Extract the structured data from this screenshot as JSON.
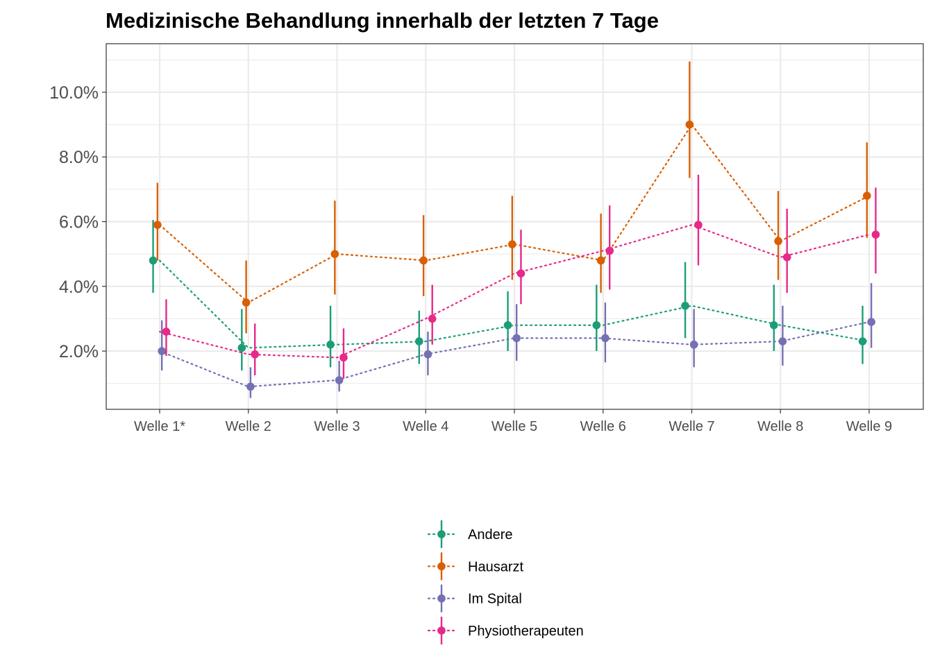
{
  "chart_data": {
    "type": "line",
    "title": "Medizinische Behandlung innerhalb der letzten 7 Tage",
    "xlabel": "",
    "ylabel": "",
    "categories": [
      "Welle 1*",
      "Welle 2",
      "Welle 3",
      "Welle 4",
      "Welle 5",
      "Welle 6",
      "Welle 7",
      "Welle 8",
      "Welle 9"
    ],
    "y_ticks": [
      {
        "value": 2,
        "label": "2.0%"
      },
      {
        "value": 4,
        "label": "4.0%"
      },
      {
        "value": 6,
        "label": "6.0%"
      },
      {
        "value": 8,
        "label": "8.0%"
      },
      {
        "value": 10,
        "label": "10.0%"
      }
    ],
    "ylim": [
      0.2,
      11.5
    ],
    "grid": true,
    "legend_position": "bottom",
    "line_style": "dotted",
    "error_bars": true,
    "series": [
      {
        "name": "Andere",
        "color": "#1b9e77",
        "values": [
          4.8,
          2.1,
          2.2,
          2.3,
          2.8,
          2.8,
          3.4,
          2.8,
          2.3
        ],
        "lower": [
          3.8,
          1.4,
          1.5,
          1.6,
          2.0,
          2.0,
          2.4,
          2.0,
          1.6
        ],
        "upper": [
          6.05,
          3.3,
          3.4,
          3.25,
          3.85,
          4.05,
          4.75,
          4.05,
          3.4
        ]
      },
      {
        "name": "Hausarzt",
        "color": "#d95f02",
        "values": [
          5.9,
          3.5,
          5.0,
          4.8,
          5.3,
          4.8,
          9.0,
          5.4,
          6.8
        ],
        "lower": [
          4.8,
          2.55,
          3.75,
          3.7,
          4.2,
          3.8,
          7.35,
          4.2,
          5.5
        ],
        "upper": [
          7.2,
          4.8,
          6.65,
          6.2,
          6.8,
          6.25,
          10.95,
          6.95,
          8.45
        ]
      },
      {
        "name": "Im Spital",
        "color": "#7570b3",
        "values": [
          2.0,
          0.9,
          1.1,
          1.9,
          2.4,
          2.4,
          2.2,
          2.3,
          2.9
        ],
        "lower": [
          1.4,
          0.55,
          0.75,
          1.25,
          1.7,
          1.65,
          1.5,
          1.55,
          2.1
        ],
        "upper": [
          2.95,
          1.5,
          1.7,
          2.6,
          3.45,
          3.5,
          3.3,
          3.4,
          4.1
        ]
      },
      {
        "name": "Physiotherapeuten",
        "color": "#e7298a",
        "values": [
          2.6,
          1.9,
          1.8,
          3.0,
          4.4,
          5.1,
          5.9,
          4.9,
          5.6
        ],
        "lower": [
          1.85,
          1.25,
          1.15,
          2.2,
          3.45,
          3.9,
          4.65,
          3.8,
          4.4
        ],
        "upper": [
          3.6,
          2.85,
          2.7,
          4.05,
          5.75,
          6.5,
          7.45,
          6.4,
          7.05
        ]
      }
    ]
  }
}
